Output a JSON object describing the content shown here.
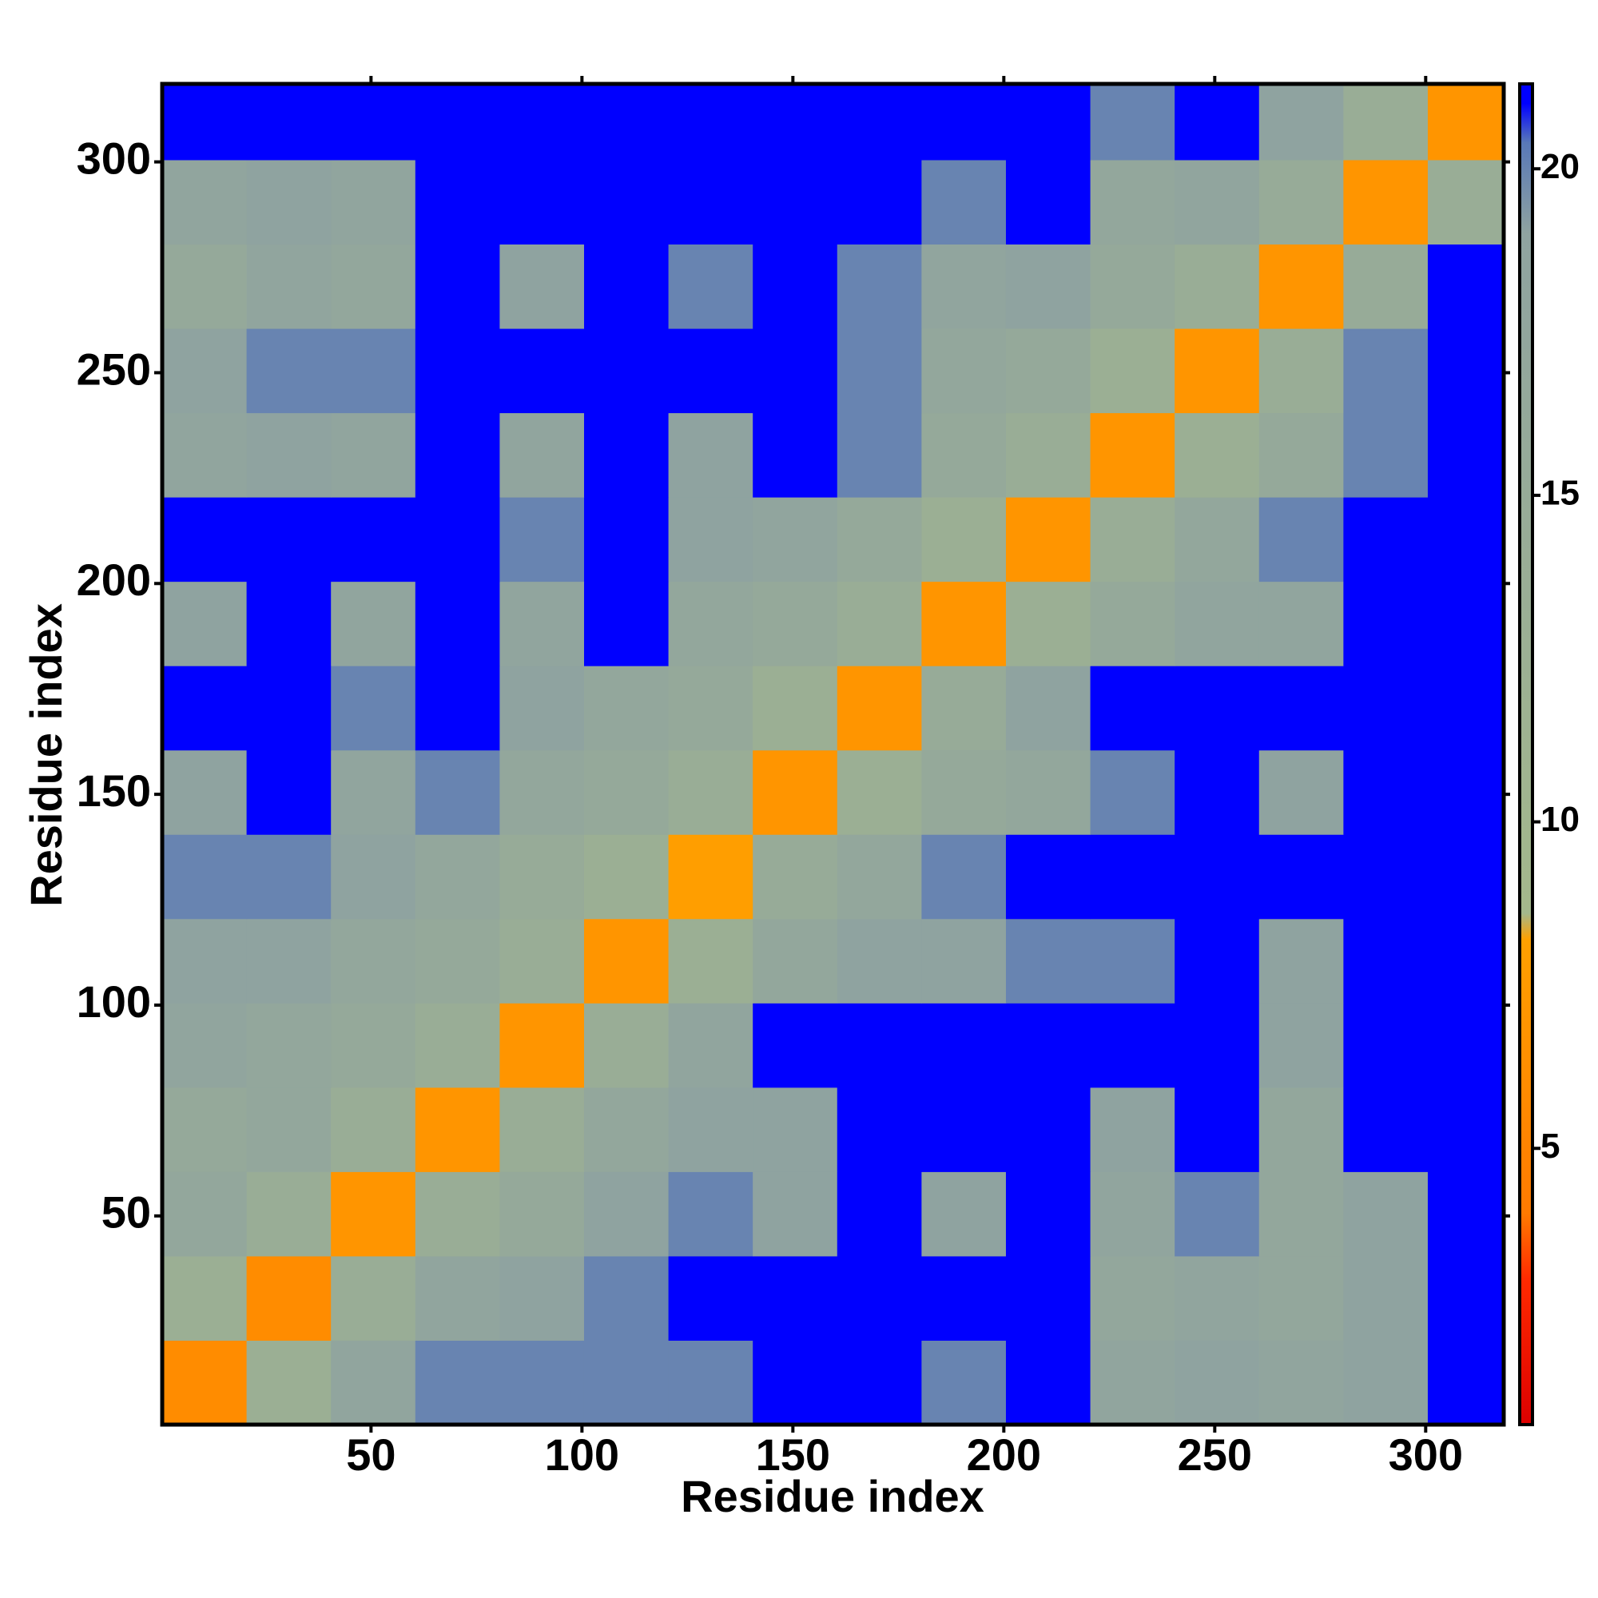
{
  "chart_data": {
    "type": "heatmap",
    "xlabel": "Residue index",
    "ylabel": "Residue index",
    "xbins": [
      0.5,
      20.5,
      40.5,
      60.5,
      80.5,
      100.5,
      120.5,
      140.5,
      160.5,
      180.5,
      200.5,
      220.5,
      240.5,
      260.5,
      280.5,
      300.5,
      318.5
    ],
    "ybins": [
      0.5,
      20.5,
      40.5,
      60.5,
      80.5,
      100.5,
      120.5,
      140.5,
      160.5,
      180.5,
      200.5,
      220.5,
      240.5,
      260.5,
      280.5,
      300.5,
      318.5
    ],
    "xlim": [
      0.5,
      318.5
    ],
    "ylim": [
      0.5,
      318.5
    ],
    "xticks": [
      50,
      100,
      150,
      200,
      250,
      300
    ],
    "yticks": [
      50,
      100,
      150,
      200,
      250,
      300
    ],
    "clim": [
      0.77,
      21.3
    ],
    "cticks": [
      5,
      10,
      15,
      20
    ],
    "colorscale": [
      [
        0.77,
        "#dd0000"
      ],
      [
        3,
        "#ff2a00"
      ],
      [
        4,
        "#ff7a00"
      ],
      [
        8.2,
        "#ffa000"
      ],
      [
        8.6,
        "#a4b88c"
      ],
      [
        19,
        "#8fa3a0"
      ],
      [
        20.4,
        "#5878b8"
      ],
      [
        21,
        "#0000ff"
      ],
      [
        21.3,
        "#0000ff"
      ]
    ],
    "z": [
      [
        6,
        13,
        18,
        20,
        20,
        20,
        20,
        21,
        21,
        20,
        21,
        18,
        19,
        18,
        19,
        21
      ],
      [
        13,
        6,
        14,
        18,
        19,
        20,
        21,
        21,
        21,
        21,
        21,
        17,
        18,
        17,
        19,
        21
      ],
      [
        17,
        14,
        7,
        14,
        16,
        19,
        20,
        19,
        21,
        19,
        21,
        18,
        20,
        17,
        19,
        21
      ],
      [
        16,
        17,
        14,
        7,
        14,
        17,
        19,
        19,
        21,
        21,
        21,
        19,
        21,
        17,
        21,
        21
      ],
      [
        18,
        17,
        16,
        14,
        7,
        14,
        18,
        21,
        21,
        21,
        21,
        21,
        21,
        19,
        21,
        21
      ],
      [
        19,
        19,
        17,
        16,
        14,
        7,
        13,
        17,
        19,
        19,
        20,
        20,
        21,
        19,
        21,
        21
      ],
      [
        20,
        20,
        19,
        17,
        15,
        13,
        8,
        15,
        17,
        20,
        21,
        21,
        21,
        21,
        21,
        21
      ],
      [
        19,
        21,
        18,
        20,
        17,
        16,
        14,
        7,
        13,
        16,
        17,
        20,
        21,
        19,
        21,
        21
      ],
      [
        21,
        21,
        20,
        21,
        19,
        17,
        16,
        13,
        7,
        15,
        19,
        21,
        21,
        21,
        21,
        21
      ],
      [
        19,
        21,
        18,
        21,
        18,
        21,
        17,
        16,
        14,
        7,
        13,
        16,
        18,
        18,
        21,
        21
      ],
      [
        21,
        21,
        21,
        21,
        20,
        21,
        19,
        18,
        16,
        13,
        7,
        14,
        17,
        20,
        21,
        21
      ],
      [
        18,
        19,
        18,
        21,
        18,
        21,
        19,
        21,
        20,
        16,
        14,
        7,
        13,
        16,
        20,
        21
      ],
      [
        19,
        20,
        20,
        21,
        21,
        21,
        21,
        21,
        20,
        17,
        16,
        13,
        7,
        14,
        20,
        21
      ],
      [
        16,
        18,
        17,
        21,
        19,
        21,
        20,
        21,
        20,
        18,
        19,
        16,
        14,
        7,
        15,
        21
      ],
      [
        18,
        19,
        18,
        21,
        21,
        21,
        21,
        21,
        21,
        20,
        21,
        17,
        18,
        15,
        7,
        14
      ],
      [
        21,
        21,
        21,
        21,
        21,
        21,
        21,
        21,
        21,
        21,
        21,
        20,
        21,
        19,
        14,
        7
      ]
    ]
  }
}
